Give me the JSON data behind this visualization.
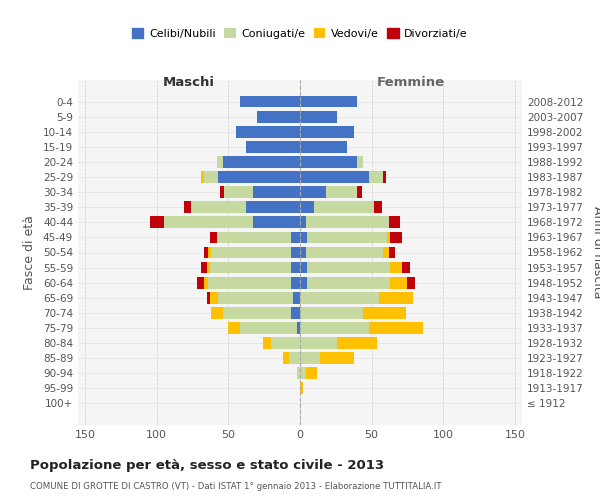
{
  "age_groups": [
    "100+",
    "95-99",
    "90-94",
    "85-89",
    "80-84",
    "75-79",
    "70-74",
    "65-69",
    "60-64",
    "55-59",
    "50-54",
    "45-49",
    "40-44",
    "35-39",
    "30-34",
    "25-29",
    "20-24",
    "15-19",
    "10-14",
    "5-9",
    "0-4"
  ],
  "birth_years": [
    "≤ 1912",
    "1913-1917",
    "1918-1922",
    "1923-1927",
    "1928-1932",
    "1933-1937",
    "1938-1942",
    "1943-1947",
    "1948-1952",
    "1953-1957",
    "1958-1962",
    "1963-1967",
    "1968-1972",
    "1973-1977",
    "1978-1982",
    "1983-1987",
    "1988-1992",
    "1993-1997",
    "1998-2002",
    "2003-2007",
    "2008-2012"
  ],
  "maschi": {
    "celibi": [
      0,
      0,
      0,
      0,
      0,
      2,
      6,
      5,
      6,
      6,
      6,
      6,
      33,
      38,
      33,
      57,
      54,
      38,
      45,
      30,
      42
    ],
    "coniugati": [
      0,
      0,
      2,
      8,
      20,
      40,
      48,
      52,
      58,
      57,
      56,
      52,
      62,
      38,
      20,
      10,
      4,
      0,
      0,
      0,
      0
    ],
    "vedovi": [
      0,
      0,
      0,
      4,
      6,
      8,
      8,
      6,
      3,
      2,
      2,
      0,
      0,
      0,
      0,
      2,
      0,
      0,
      0,
      0,
      0
    ],
    "divorziati": [
      0,
      0,
      0,
      0,
      0,
      0,
      0,
      2,
      5,
      4,
      3,
      5,
      10,
      5,
      3,
      0,
      0,
      0,
      0,
      0,
      0
    ]
  },
  "femmine": {
    "nubili": [
      0,
      0,
      0,
      0,
      0,
      0,
      0,
      0,
      5,
      5,
      4,
      5,
      4,
      10,
      18,
      48,
      40,
      33,
      38,
      26,
      40
    ],
    "coniugate": [
      0,
      0,
      4,
      14,
      26,
      48,
      44,
      55,
      58,
      58,
      54,
      56,
      58,
      42,
      22,
      10,
      4,
      0,
      0,
      0,
      0
    ],
    "vedove": [
      0,
      2,
      8,
      24,
      28,
      38,
      30,
      24,
      12,
      8,
      4,
      2,
      0,
      0,
      0,
      0,
      0,
      0,
      0,
      0,
      0
    ],
    "divorziate": [
      0,
      0,
      0,
      0,
      0,
      0,
      0,
      0,
      5,
      6,
      4,
      8,
      8,
      5,
      3,
      2,
      0,
      0,
      0,
      0,
      0
    ]
  },
  "colors": {
    "celibi": "#4472c4",
    "coniugati": "#c5d9a0",
    "vedovi": "#ffc000",
    "divorziati": "#c0000a"
  },
  "xlim": 155,
  "title": "Popolazione per età, sesso e stato civile - 2013",
  "subtitle": "COMUNE DI GROTTE DI CASTRO (VT) - Dati ISTAT 1° gennaio 2013 - Elaborazione TUTTITALIA.IT",
  "ylabel_left": "Fasce di età",
  "ylabel_right": "Anni di nascita",
  "xlabel_left": "Maschi",
  "xlabel_right": "Femmine",
  "bg_color": "#f5f5f5"
}
